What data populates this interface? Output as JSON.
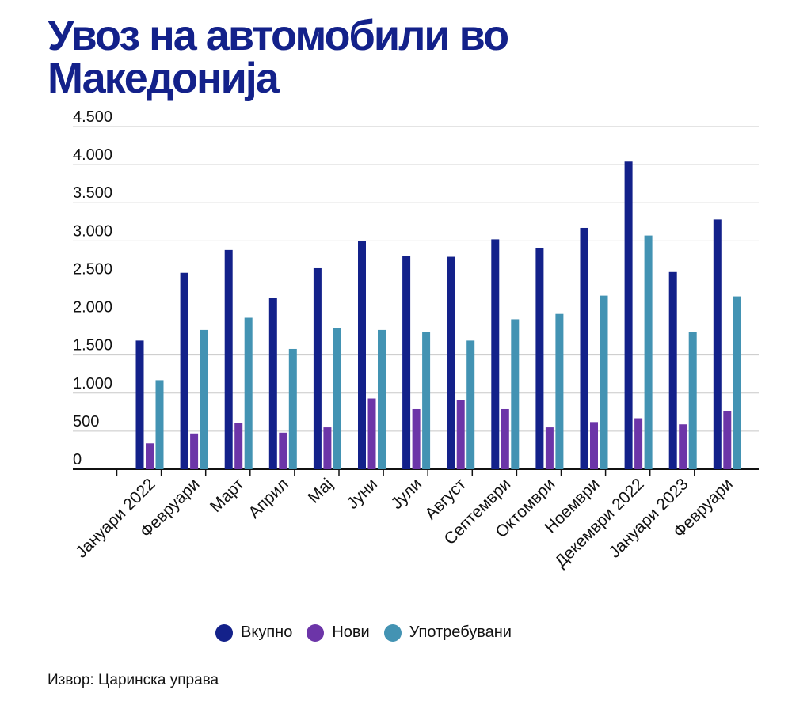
{
  "title": {
    "line1": "Увоз на автомобили во",
    "line2": "Македонија"
  },
  "source": "Извор: Царинска управа",
  "colors": {
    "total": "#13218a",
    "new": "#6c35a8",
    "used": "#4393b3",
    "title": "#13218a"
  },
  "chart_data": {
    "type": "bar",
    "title": "Увоз на автомобили во Македонија",
    "xlabel": "",
    "ylabel": "",
    "ylim": [
      0,
      4500
    ],
    "yticks": [
      0,
      500,
      1000,
      1500,
      2000,
      2500,
      3000,
      3500,
      4000,
      4500
    ],
    "ytick_labels": [
      "0",
      "500",
      "1.000",
      "1.500",
      "2.000",
      "2.500",
      "3.000",
      "3.500",
      "4.000",
      "4.500"
    ],
    "grid": true,
    "legend_position": "bottom-center",
    "categories": [
      "Јануари 2022",
      "Февруари",
      "Март",
      "Април",
      "Мај",
      "Јуни",
      "Јули",
      "Август",
      "Септември",
      "Октомври",
      "Ноември",
      "Декември 2022",
      "Јануари 2023",
      "Февруари"
    ],
    "series": [
      {
        "name": "Вкупно",
        "key": "total",
        "values": [
          1690,
          2580,
          2880,
          2250,
          2640,
          3000,
          2800,
          2790,
          3020,
          2910,
          3170,
          4040,
          2590,
          3280
        ]
      },
      {
        "name": "Нови",
        "key": "new",
        "values": [
          340,
          470,
          610,
          480,
          550,
          930,
          790,
          910,
          790,
          550,
          620,
          670,
          590,
          760
        ]
      },
      {
        "name": "Употребувани",
        "key": "used",
        "values": [
          1170,
          1830,
          1990,
          1580,
          1850,
          1830,
          1800,
          1690,
          1970,
          2040,
          2280,
          3070,
          1800,
          2270
        ]
      }
    ]
  }
}
